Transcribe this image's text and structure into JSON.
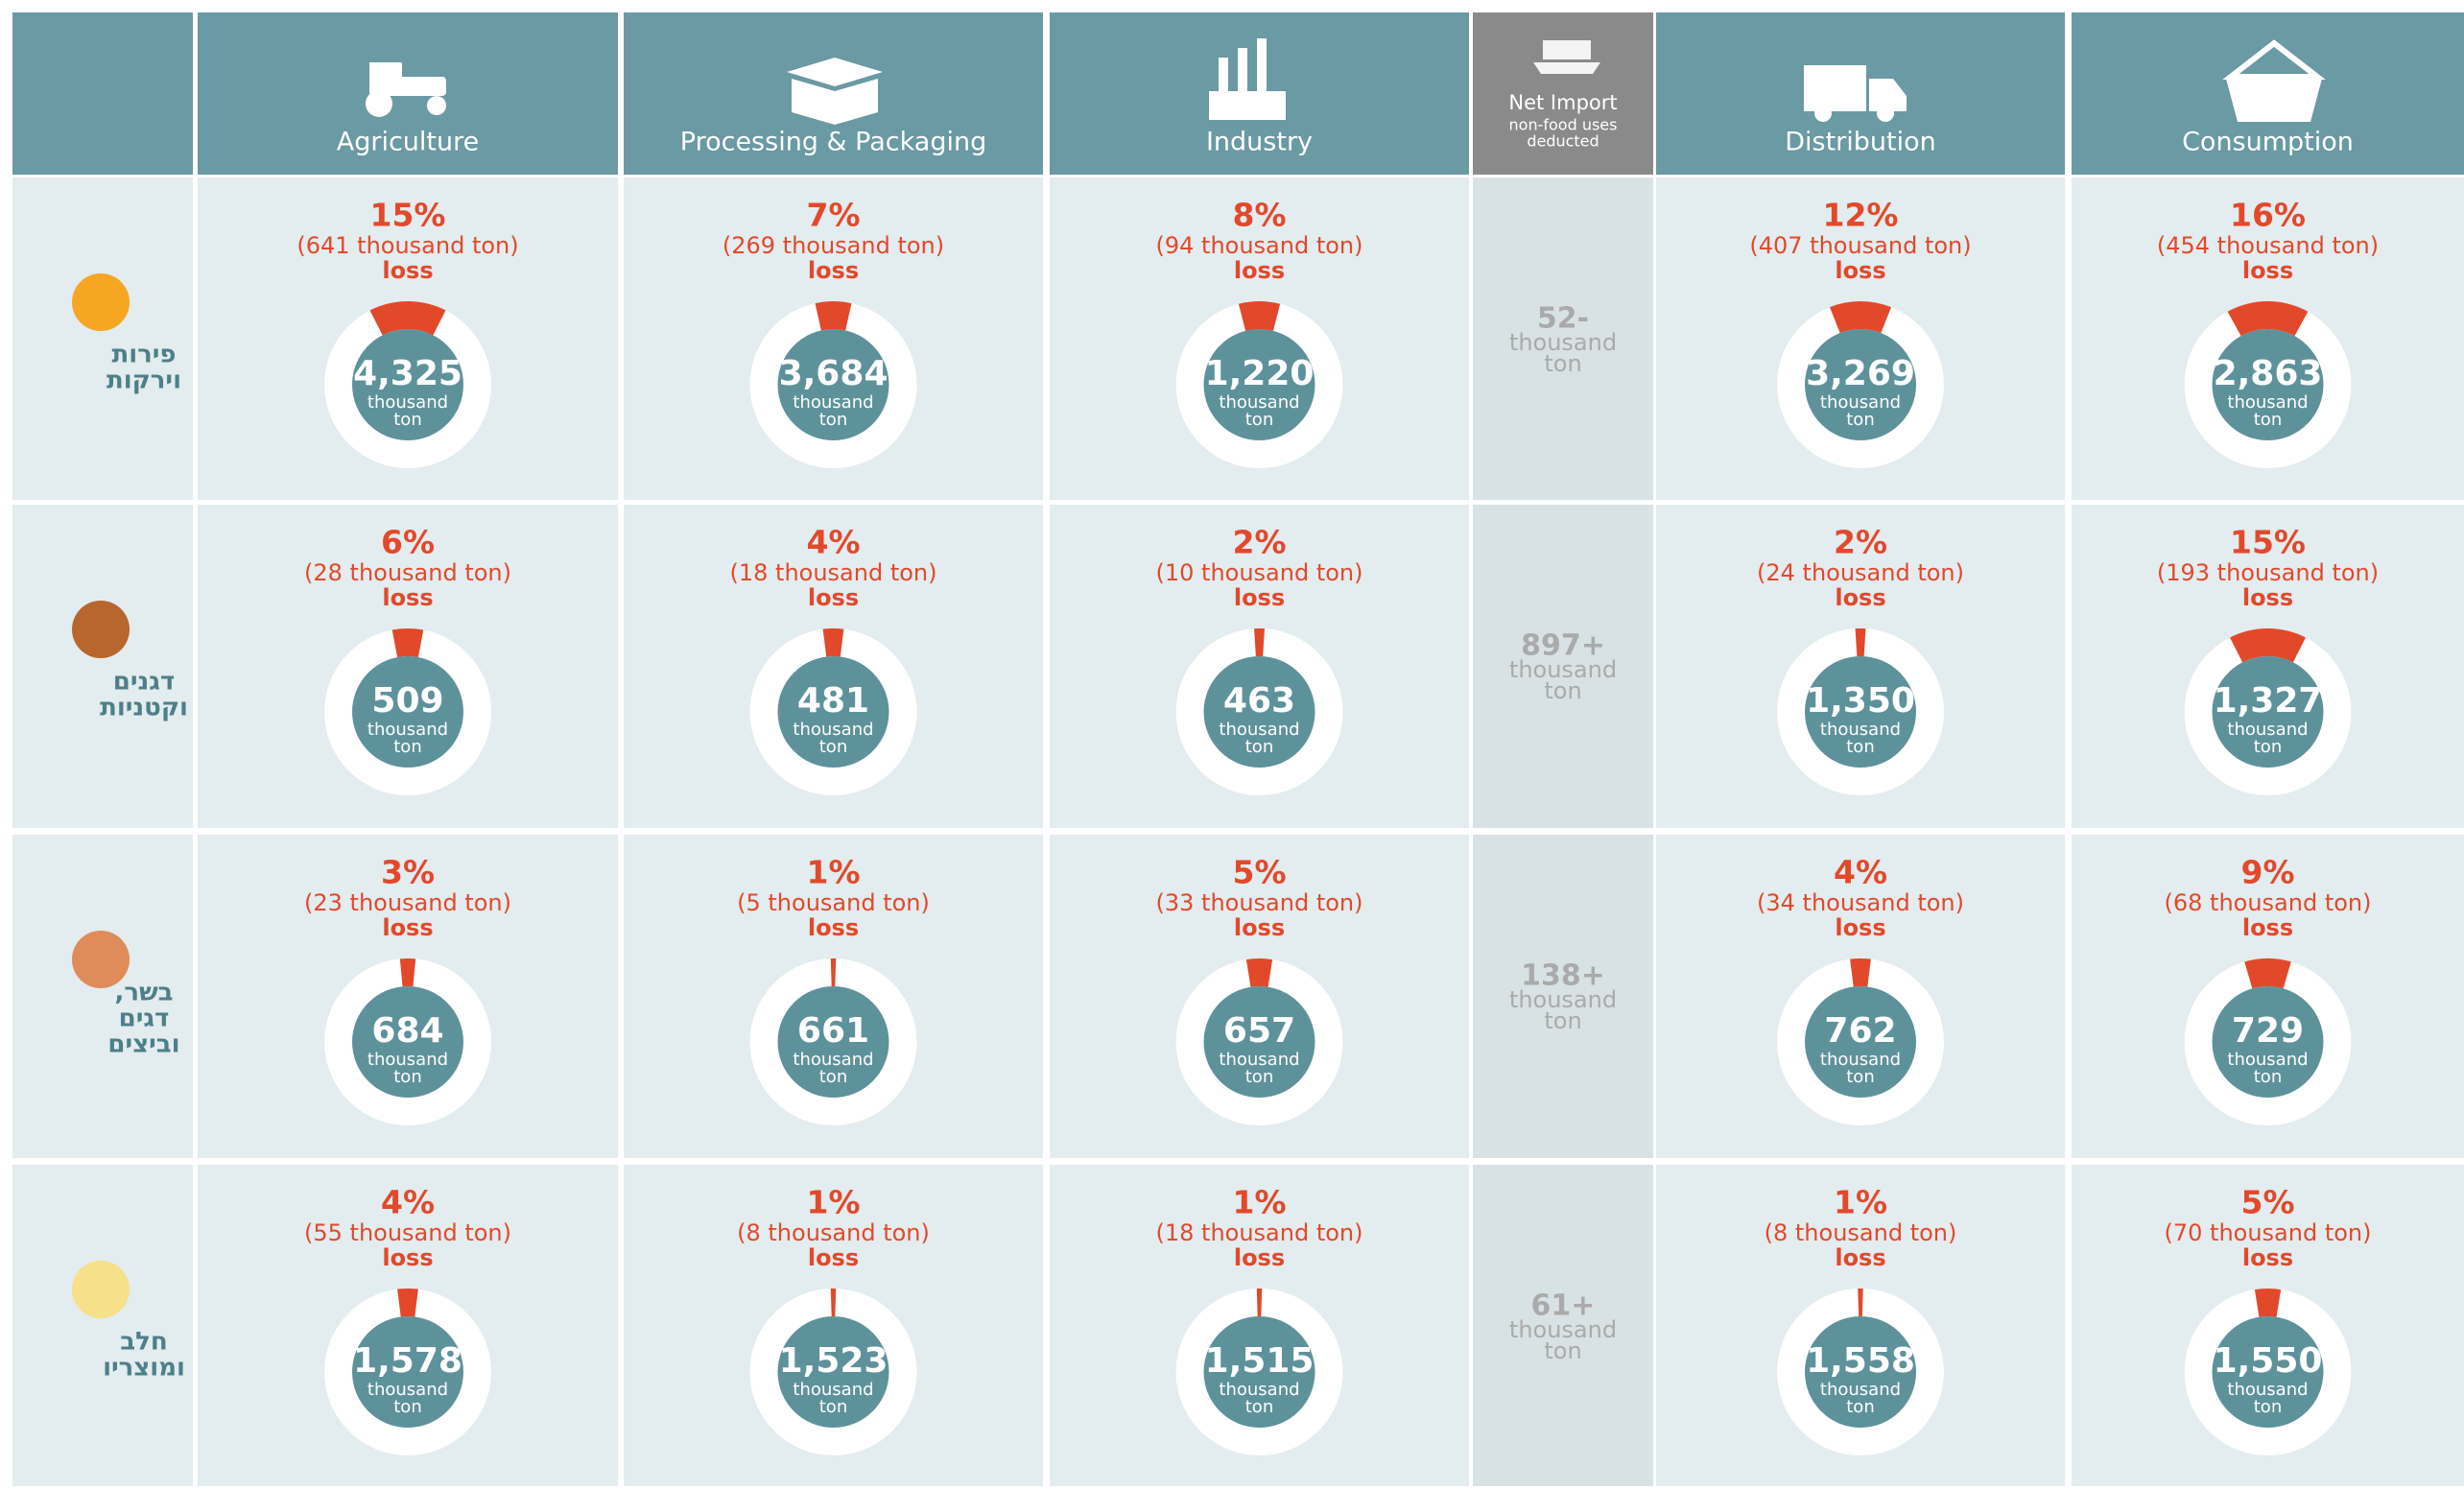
{
  "header": {
    "columns": [
      "Agriculture",
      "Processing & Packaging",
      "Industry",
      "Distribution",
      "Consumption"
    ],
    "net_import": {
      "title": "Net Import",
      "note": [
        "non-food uses",
        "deducted"
      ]
    }
  },
  "units": {
    "thousand": "thousand",
    "ton": "ton",
    "loss": "loss"
  },
  "rows": [
    {
      "label": [
        "פירות",
        "וירקות"
      ],
      "net_import": "52-",
      "cells": [
        {
          "pct": {
            "value": 15,
            "label": "15%"
          },
          "amount": "(641 thousand ton)",
          "total": "4,325"
        },
        {
          "pct": {
            "value": 7,
            "label": "7%"
          },
          "amount": "(269 thousand ton)",
          "total": "3,684"
        },
        {
          "pct": {
            "value": 8,
            "label": "8%"
          },
          "amount": "(94 thousand ton)",
          "total": "1,220"
        },
        {
          "pct": {
            "value": 12,
            "label": "12%"
          },
          "amount": "(407 thousand ton)",
          "total": "3,269"
        },
        {
          "pct": {
            "value": 16,
            "label": "16%"
          },
          "amount": "(454 thousand ton)",
          "total": "2,863"
        }
      ]
    },
    {
      "label": [
        "דגנים",
        "וקטניות"
      ],
      "net_import": "897+",
      "cells": [
        {
          "pct": {
            "value": 6,
            "label": "6%"
          },
          "amount": "(28 thousand ton)",
          "total": "509"
        },
        {
          "pct": {
            "value": 4,
            "label": "4%"
          },
          "amount": "(18 thousand ton)",
          "total": "481"
        },
        {
          "pct": {
            "value": 2,
            "label": "2%"
          },
          "amount": "(10 thousand ton)",
          "total": "463"
        },
        {
          "pct": {
            "value": 2,
            "label": "2%"
          },
          "amount": "(24 thousand ton)",
          "total": "1,350"
        },
        {
          "pct": {
            "value": 15,
            "label": "15%"
          },
          "amount": "(193 thousand ton)",
          "total": "1,327"
        }
      ]
    },
    {
      "label": [
        "בשר,",
        "דגים",
        "וביצים"
      ],
      "net_import": "138+",
      "cells": [
        {
          "pct": {
            "value": 3,
            "label": "3%"
          },
          "amount": "(23 thousand ton)",
          "total": "684"
        },
        {
          "pct": {
            "value": 1,
            "label": "1%"
          },
          "amount": "(5 thousand ton)",
          "total": "661"
        },
        {
          "pct": {
            "value": 5,
            "label": "5%"
          },
          "amount": "(33 thousand ton)",
          "total": "657"
        },
        {
          "pct": {
            "value": 4,
            "label": "4%"
          },
          "amount": "(34 thousand ton)",
          "total": "762"
        },
        {
          "pct": {
            "value": 9,
            "label": "9%"
          },
          "amount": "(68 thousand ton)",
          "total": "729"
        }
      ]
    },
    {
      "label": [
        "חלב",
        "ומוצריו"
      ],
      "net_import": "61+",
      "cells": [
        {
          "pct": {
            "value": 4,
            "label": "4%"
          },
          "amount": "(55 thousand ton)",
          "total": "1,578"
        },
        {
          "pct": {
            "value": 1,
            "label": "1%"
          },
          "amount": "(8 thousand ton)",
          "total": "1,523"
        },
        {
          "pct": {
            "value": 1,
            "label": "1%"
          },
          "amount": "(18 thousand ton)",
          "total": "1,515"
        },
        {
          "pct": {
            "value": 1,
            "label": "1%"
          },
          "amount": "(8 thousand ton)",
          "total": "1,558"
        },
        {
          "pct": {
            "value": 5,
            "label": "5%"
          },
          "amount": "(70 thousand ton)",
          "total": "1,550"
        }
      ]
    }
  ]
}
